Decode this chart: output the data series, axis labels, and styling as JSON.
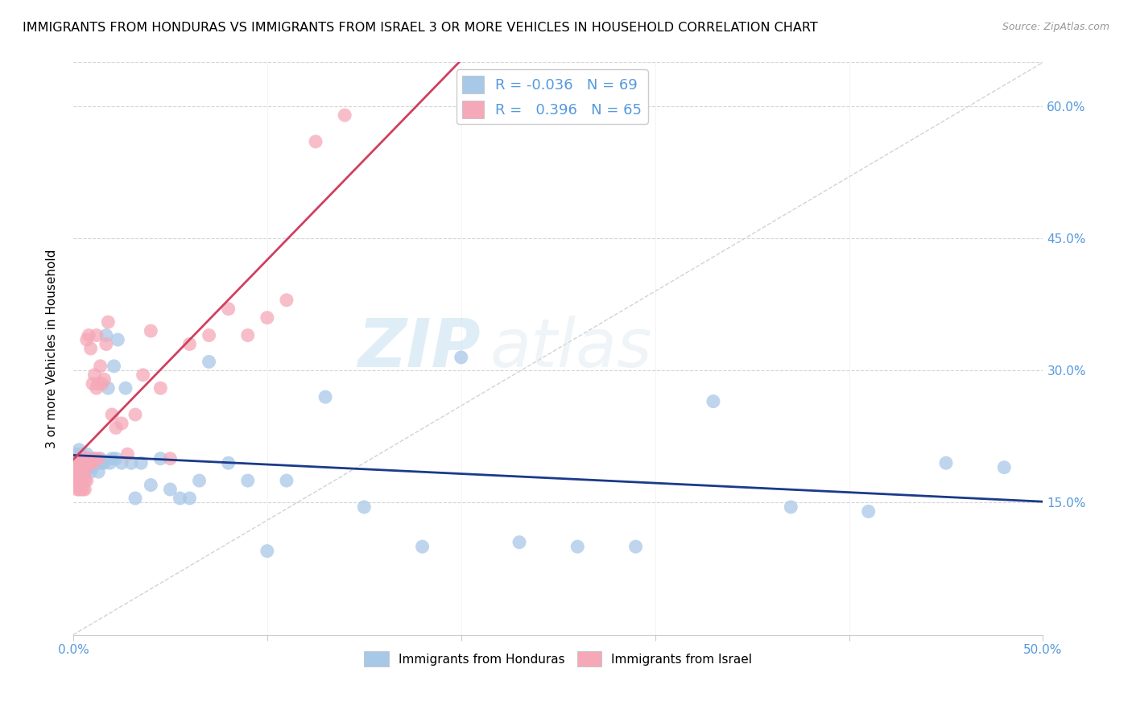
{
  "title": "IMMIGRANTS FROM HONDURAS VS IMMIGRANTS FROM ISRAEL 3 OR MORE VEHICLES IN HOUSEHOLD CORRELATION CHART",
  "source": "Source: ZipAtlas.com",
  "ylabel": "3 or more Vehicles in Household",
  "xlim": [
    0.0,
    0.5
  ],
  "ylim": [
    0.0,
    0.65
  ],
  "xtick_pos": [
    0.0,
    0.1,
    0.2,
    0.3,
    0.4,
    0.5
  ],
  "xtick_labels": [
    "0.0%",
    "",
    "",
    "",
    "",
    "50.0%"
  ],
  "yticks": [
    0.15,
    0.3,
    0.45,
    0.6
  ],
  "ytick_labels": [
    "15.0%",
    "30.0%",
    "45.0%",
    "60.0%"
  ],
  "legend_R_honduras": "-0.036",
  "legend_N_honduras": "69",
  "legend_R_israel": "0.396",
  "legend_N_israel": "65",
  "color_honduras": "#a8c8e8",
  "color_israel": "#f5a8b8",
  "trendline_honduras_color": "#1a3a8a",
  "trendline_israel_color": "#d04060",
  "watermark": "ZIPatlas",
  "scatter_honduras_x": [
    0.001,
    0.001,
    0.002,
    0.002,
    0.002,
    0.003,
    0.003,
    0.003,
    0.004,
    0.004,
    0.004,
    0.004,
    0.005,
    0.005,
    0.005,
    0.006,
    0.006,
    0.006,
    0.007,
    0.007,
    0.007,
    0.008,
    0.008,
    0.009,
    0.009,
    0.01,
    0.01,
    0.011,
    0.012,
    0.013,
    0.013,
    0.014,
    0.015,
    0.016,
    0.017,
    0.018,
    0.019,
    0.02,
    0.021,
    0.022,
    0.023,
    0.025,
    0.027,
    0.03,
    0.032,
    0.035,
    0.04,
    0.045,
    0.05,
    0.055,
    0.06,
    0.065,
    0.07,
    0.08,
    0.09,
    0.1,
    0.11,
    0.13,
    0.15,
    0.18,
    0.2,
    0.23,
    0.26,
    0.29,
    0.33,
    0.37,
    0.41,
    0.45,
    0.48
  ],
  "scatter_honduras_y": [
    0.195,
    0.205,
    0.185,
    0.2,
    0.195,
    0.19,
    0.2,
    0.21,
    0.185,
    0.195,
    0.2,
    0.205,
    0.19,
    0.195,
    0.2,
    0.185,
    0.195,
    0.2,
    0.195,
    0.2,
    0.205,
    0.19,
    0.195,
    0.185,
    0.2,
    0.19,
    0.195,
    0.2,
    0.195,
    0.195,
    0.185,
    0.2,
    0.195,
    0.195,
    0.34,
    0.28,
    0.195,
    0.2,
    0.305,
    0.2,
    0.335,
    0.195,
    0.28,
    0.195,
    0.155,
    0.195,
    0.17,
    0.2,
    0.165,
    0.155,
    0.155,
    0.175,
    0.31,
    0.195,
    0.175,
    0.095,
    0.175,
    0.27,
    0.145,
    0.1,
    0.315,
    0.105,
    0.1,
    0.1,
    0.265,
    0.145,
    0.14,
    0.195,
    0.19
  ],
  "scatter_israel_x": [
    0.001,
    0.001,
    0.001,
    0.002,
    0.002,
    0.002,
    0.002,
    0.003,
    0.003,
    0.003,
    0.003,
    0.003,
    0.004,
    0.004,
    0.004,
    0.004,
    0.005,
    0.005,
    0.005,
    0.005,
    0.005,
    0.006,
    0.006,
    0.006,
    0.006,
    0.006,
    0.007,
    0.007,
    0.007,
    0.007,
    0.008,
    0.008,
    0.008,
    0.009,
    0.009,
    0.01,
    0.01,
    0.011,
    0.011,
    0.012,
    0.012,
    0.013,
    0.013,
    0.014,
    0.015,
    0.016,
    0.017,
    0.018,
    0.02,
    0.022,
    0.025,
    0.028,
    0.032,
    0.036,
    0.04,
    0.045,
    0.05,
    0.06,
    0.07,
    0.08,
    0.09,
    0.1,
    0.11,
    0.125,
    0.14
  ],
  "scatter_israel_y": [
    0.195,
    0.185,
    0.175,
    0.195,
    0.185,
    0.175,
    0.165,
    0.185,
    0.195,
    0.2,
    0.175,
    0.165,
    0.185,
    0.175,
    0.195,
    0.165,
    0.195,
    0.185,
    0.2,
    0.175,
    0.165,
    0.195,
    0.185,
    0.2,
    0.175,
    0.165,
    0.195,
    0.335,
    0.2,
    0.175,
    0.34,
    0.195,
    0.2,
    0.195,
    0.325,
    0.195,
    0.285,
    0.295,
    0.2,
    0.28,
    0.34,
    0.285,
    0.2,
    0.305,
    0.285,
    0.29,
    0.33,
    0.355,
    0.25,
    0.235,
    0.24,
    0.205,
    0.25,
    0.295,
    0.345,
    0.28,
    0.2,
    0.33,
    0.34,
    0.37,
    0.34,
    0.36,
    0.38,
    0.56,
    0.59
  ]
}
